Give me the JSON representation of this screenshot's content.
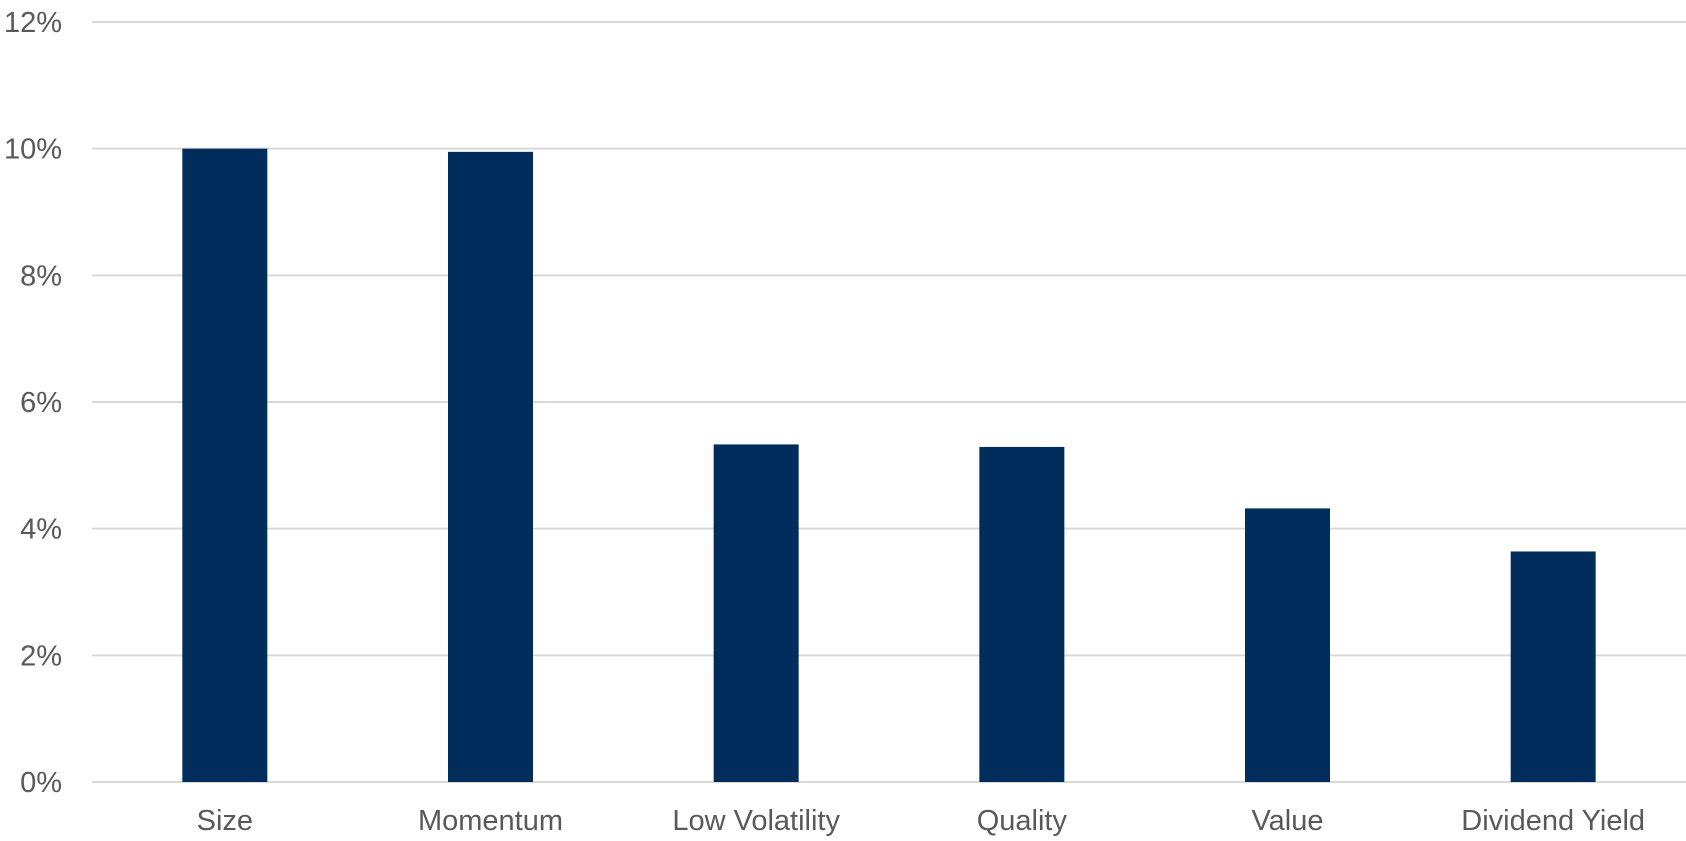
{
  "colors": {
    "bar": "#002d5c",
    "gridline": "#d9d9d9",
    "tick_text": "#595959",
    "background": "#ffffff"
  },
  "chart_data": {
    "type": "bar",
    "title": "",
    "xlabel": "",
    "ylabel": "",
    "categories": [
      "Size",
      "Momentum",
      "Low Volatility",
      "Quality",
      "Value",
      "Dividend Yield"
    ],
    "values": [
      10.0,
      9.95,
      5.33,
      5.29,
      4.32,
      3.64
    ],
    "ylim": [
      0,
      12
    ],
    "y_ticks": [
      0,
      2,
      4,
      6,
      8,
      10,
      12
    ],
    "y_tick_labels": [
      "0%",
      "2%",
      "4%",
      "6%",
      "8%",
      "10%",
      "12%"
    ],
    "y_unit": "%",
    "grid": true,
    "legend": "none"
  }
}
